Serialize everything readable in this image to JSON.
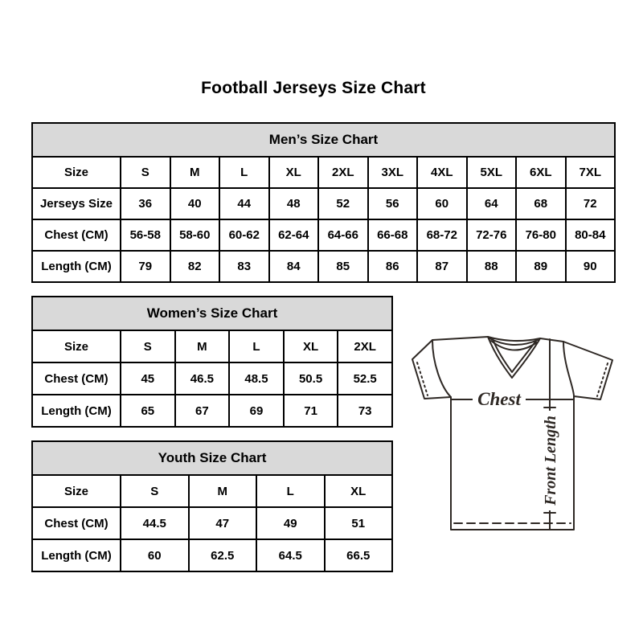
{
  "title": "Football Jerseys Size Chart",
  "colors": {
    "background": "#ffffff",
    "table_border": "#000000",
    "header_bg": "#d9d9d9",
    "text": "#000000",
    "jersey_line": "#2e2824"
  },
  "tables": {
    "men": {
      "title": "Men’s Size Chart",
      "rows": [
        {
          "label": "Size",
          "values": [
            "S",
            "M",
            "L",
            "XL",
            "2XL",
            "3XL",
            "4XL",
            "5XL",
            "6XL",
            "7XL"
          ]
        },
        {
          "label": "Jerseys Size",
          "values": [
            "36",
            "40",
            "44",
            "48",
            "52",
            "56",
            "60",
            "64",
            "68",
            "72"
          ]
        },
        {
          "label": "Chest (CM)",
          "values": [
            "56-58",
            "58-60",
            "60-62",
            "62-64",
            "64-66",
            "66-68",
            "68-72",
            "72-76",
            "76-80",
            "80-84"
          ]
        },
        {
          "label": "Length (CM)",
          "values": [
            "79",
            "82",
            "83",
            "84",
            "85",
            "86",
            "87",
            "88",
            "89",
            "90"
          ]
        }
      ]
    },
    "women": {
      "title": "Women’s Size Chart",
      "rows": [
        {
          "label": "Size",
          "values": [
            "S",
            "M",
            "L",
            "XL",
            "2XL"
          ]
        },
        {
          "label": "Chest (CM)",
          "values": [
            "45",
            "46.5",
            "48.5",
            "50.5",
            "52.5"
          ]
        },
        {
          "label": "Length (CM)",
          "values": [
            "65",
            "67",
            "69",
            "71",
            "73"
          ]
        }
      ]
    },
    "youth": {
      "title": "Youth Size Chart",
      "rows": [
        {
          "label": "Size",
          "values": [
            "S",
            "M",
            "L",
            "XL"
          ]
        },
        {
          "label": "Chest (CM)",
          "values": [
            "44.5",
            "47",
            "49",
            "51"
          ]
        },
        {
          "label": "Length (CM)",
          "values": [
            "60",
            "62.5",
            "64.5",
            "66.5"
          ]
        }
      ]
    }
  },
  "diagram": {
    "chest_label": "Chest",
    "front_length_label": "Front Length"
  }
}
